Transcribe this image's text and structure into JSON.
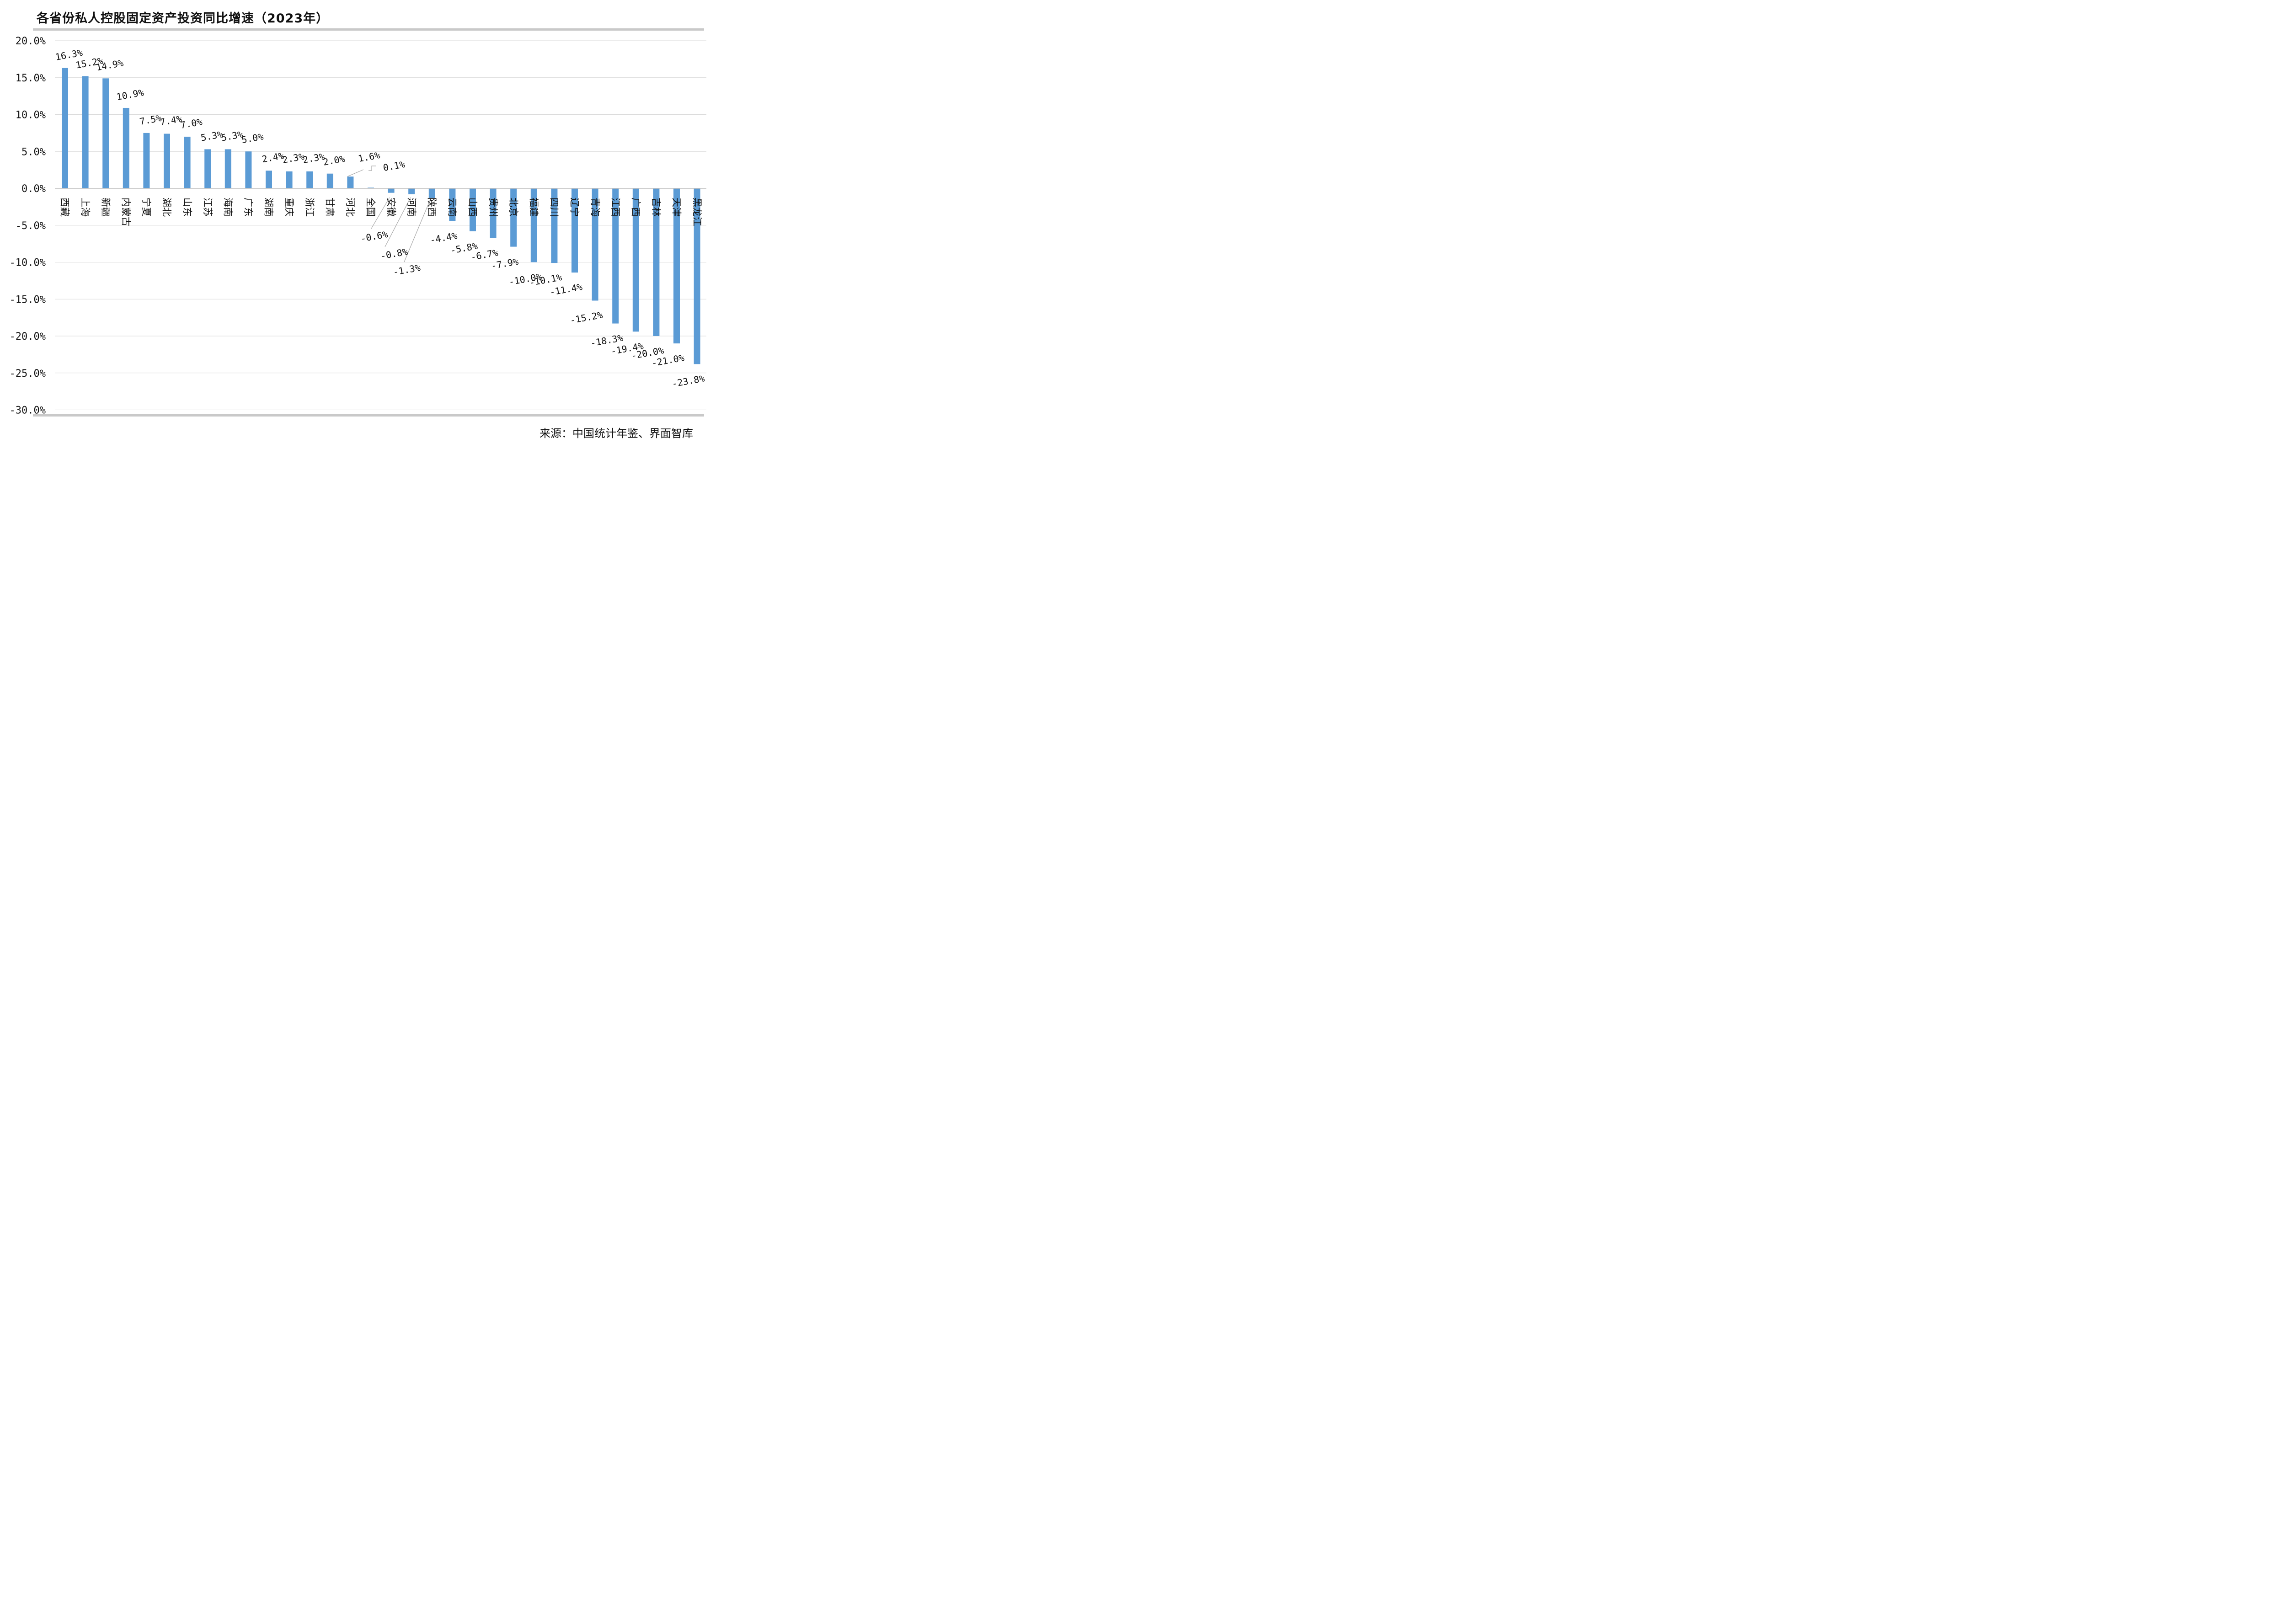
{
  "title": "各省份私人控股固定资产投资同比增速（2023年）",
  "source": "来源：中国统计年鉴、界面智库",
  "colors": {
    "bar": "#5b9bd5",
    "grid": "#d9d9d9",
    "rule": "#c9c9c9",
    "leader": "#a6a6a6"
  },
  "chart_data": {
    "type": "bar",
    "title": "各省份私人控股固定资产投资同比增速（2023年）",
    "xlabel": "",
    "ylabel": "",
    "ylim": [
      -30,
      20
    ],
    "yticks": [
      20,
      15,
      10,
      5,
      0,
      -5,
      -10,
      -15,
      -20,
      -25,
      -30
    ],
    "ytick_labels": [
      "20.0%",
      "15.0%",
      "10.0%",
      "5.0%",
      "0.0%",
      "-5.0%",
      "-10.0%",
      "-15.0%",
      "-20.0%",
      "-25.0%",
      "-30.0%"
    ],
    "grid": true,
    "legend": "none",
    "categories": [
      "西藏",
      "上海",
      "新疆",
      "内蒙古",
      "宁夏",
      "湖北",
      "山东",
      "江苏",
      "海南",
      "广东",
      "湖南",
      "重庆",
      "浙江",
      "甘肃",
      "河北",
      "全国",
      "安徽",
      "河南",
      "陕西",
      "云南",
      "山西",
      "贵州",
      "北京",
      "福建",
      "四川",
      "辽宁",
      "青海",
      "江西",
      "广西",
      "吉林",
      "天津",
      "黑龙江"
    ],
    "values": [
      16.3,
      15.2,
      14.9,
      10.9,
      7.5,
      7.4,
      7.0,
      5.3,
      5.3,
      5.0,
      2.4,
      2.3,
      2.3,
      2.0,
      1.6,
      0.1,
      -0.6,
      -0.8,
      -1.3,
      -4.4,
      -5.8,
      -6.7,
      -7.9,
      -10.0,
      -10.1,
      -11.4,
      -15.2,
      -18.3,
      -19.4,
      -20.0,
      -21.0,
      -23.8
    ],
    "data_labels": [
      "16.3%",
      "15.2%",
      "14.9%",
      "10.9%",
      "7.5%",
      "7.4%",
      "7.0%",
      "5.3%",
      "5.3%",
      "5.0%",
      "2.4%",
      "2.3%",
      "2.3%",
      "2.0%",
      "1.6%",
      "0.1%",
      "-0.6%",
      "-0.8%",
      "-1.3%",
      "-4.4%",
      "-5.8%",
      "-6.7%",
      "-7.9%",
      "-10.0%",
      "-10.1%",
      "-11.4%",
      "-15.2%",
      "-18.3%",
      "-19.4%",
      "-20.0%",
      "-21.0%",
      "-23.8%"
    ]
  }
}
